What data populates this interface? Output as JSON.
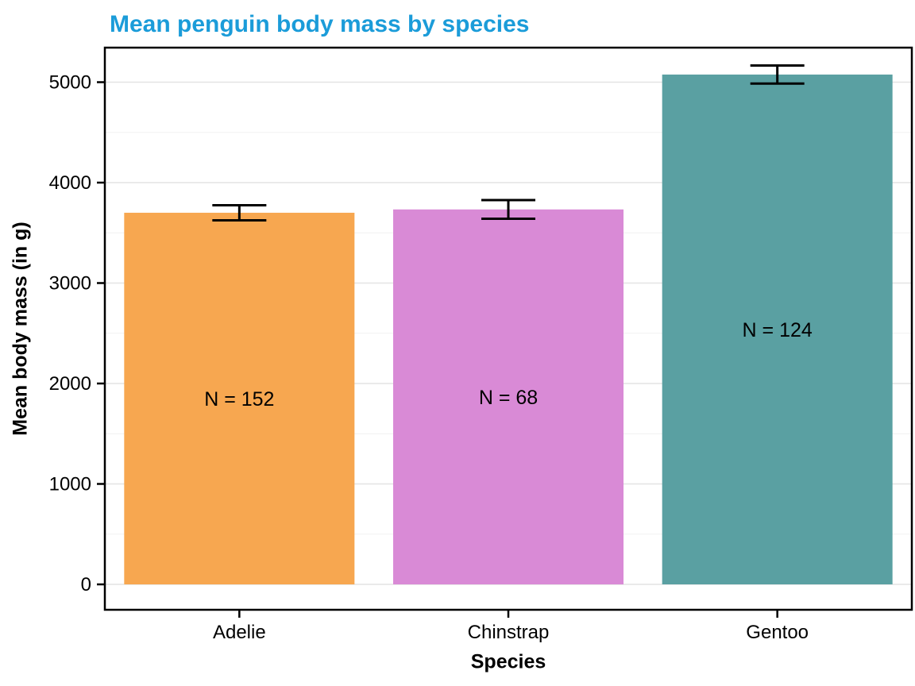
{
  "chart_data": {
    "type": "bar",
    "title": "Mean penguin body mass by species",
    "title_color": "#1B9CD9",
    "xlabel": "Species",
    "ylabel": "Mean body mass (in g)",
    "categories": [
      "Adelie",
      "Chinstrap",
      "Gentoo"
    ],
    "values": [
      3700,
      3733,
      5076
    ],
    "errors": [
      75,
      93,
      90
    ],
    "bar_labels": [
      "N = 152",
      "N = 68",
      "N = 124"
    ],
    "bar_colors": [
      "#F7A750",
      "#D98AD6",
      "#5AA0A2"
    ],
    "yticks": [
      0,
      1000,
      2000,
      3000,
      4000,
      5000
    ],
    "ylim": [
      0,
      5344
    ],
    "grid": true,
    "legend": false,
    "panel": {
      "background": "#FFFFFF",
      "border_color": "#000000",
      "grid_major_color": "#E4E4E4",
      "grid_minor_color": "#F1F1F1",
      "tick_color": "#000000",
      "errorbar_color": "#000000",
      "text_color": "#000000"
    }
  }
}
